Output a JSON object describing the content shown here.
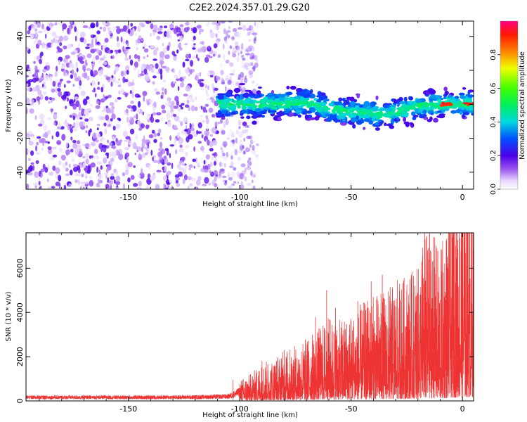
{
  "title": "C2E2.2024.357.01.29.G20",
  "chart_data": [
    {
      "type": "heatmap",
      "xlabel": "Height of straight line (km)",
      "ylabel": "Frequency (Hz)",
      "xlim": [
        -196,
        5
      ],
      "ylim": [
        -50,
        49
      ],
      "xticks": [
        -150,
        -100,
        -50,
        0
      ],
      "yticks": [
        -40,
        -20,
        0,
        20,
        40
      ],
      "colorbar": {
        "label": "Normalized spectral amplitude",
        "range": [
          0,
          1
        ],
        "ticks": [
          0.0,
          0.2,
          0.4,
          0.6,
          0.8
        ]
      },
      "noise_region_x": [
        -196,
        -100
      ],
      "signal_band": {
        "x_range": [
          -110,
          5
        ],
        "centerline": [
          {
            "x": -110,
            "y": 0
          },
          {
            "x": -90,
            "y": 0
          },
          {
            "x": -70,
            "y": 1
          },
          {
            "x": -55,
            "y": -4
          },
          {
            "x": -45,
            "y": -5
          },
          {
            "x": -35,
            "y": -6
          },
          {
            "x": -20,
            "y": -1
          },
          {
            "x": -10,
            "y": 0
          },
          {
            "x": 5,
            "y": 0
          }
        ],
        "peak_x": [
          -12,
          5
        ]
      },
      "grid": false
    },
    {
      "type": "line",
      "xlabel": "Height of straight line (km)",
      "ylabel": "SNR (10 * v/v)",
      "xlim": [
        -196,
        5
      ],
      "ylim": [
        0,
        7600
      ],
      "xticks": [
        -150,
        -100,
        -50,
        0
      ],
      "yticks": [
        0,
        2000,
        4000,
        6000
      ],
      "color": "#ee3333",
      "series": [
        {
          "x": [
            -196,
            -180,
            -160,
            -140,
            -120,
            -105,
            -100,
            -95,
            -90,
            -85,
            -80,
            -75,
            -70,
            -65,
            -60,
            -55,
            -50,
            -45,
            -40,
            -35,
            -30,
            -25,
            -20,
            -18,
            -15,
            -12,
            -10,
            -8,
            -5,
            -2,
            0,
            3,
            5
          ],
          "values": [
            200,
            200,
            200,
            200,
            210,
            250,
            500,
            650,
            900,
            1000,
            1200,
            1300,
            1500,
            1700,
            2000,
            1900,
            2100,
            2300,
            2500,
            2600,
            2800,
            3000,
            3100,
            3800,
            4100,
            3800,
            3500,
            4100,
            4800,
            5300,
            5100,
            5800,
            5600
          ],
          "peaks": [
            {
              "x": -103,
              "y": 950
            },
            {
              "x": -90,
              "y": 1800
            },
            {
              "x": -80,
              "y": 2300
            },
            {
              "x": -66,
              "y": 3800
            },
            {
              "x": -61,
              "y": 5000
            },
            {
              "x": -57,
              "y": 4200
            },
            {
              "x": -47,
              "y": 4500
            },
            {
              "x": -41,
              "y": 5400
            },
            {
              "x": -36,
              "y": 5700
            },
            {
              "x": -28,
              "y": 4000
            },
            {
              "x": -23,
              "y": 5700
            },
            {
              "x": -20,
              "y": 4900
            },
            {
              "x": -17,
              "y": 7600
            },
            {
              "x": -15,
              "y": 6400
            },
            {
              "x": -13,
              "y": 7400
            },
            {
              "x": -7,
              "y": 5000
            },
            {
              "x": -4,
              "y": 6300
            },
            {
              "x": 2,
              "y": 6100
            },
            {
              "x": 5,
              "y": 6600
            }
          ]
        }
      ],
      "grid": false
    }
  ]
}
